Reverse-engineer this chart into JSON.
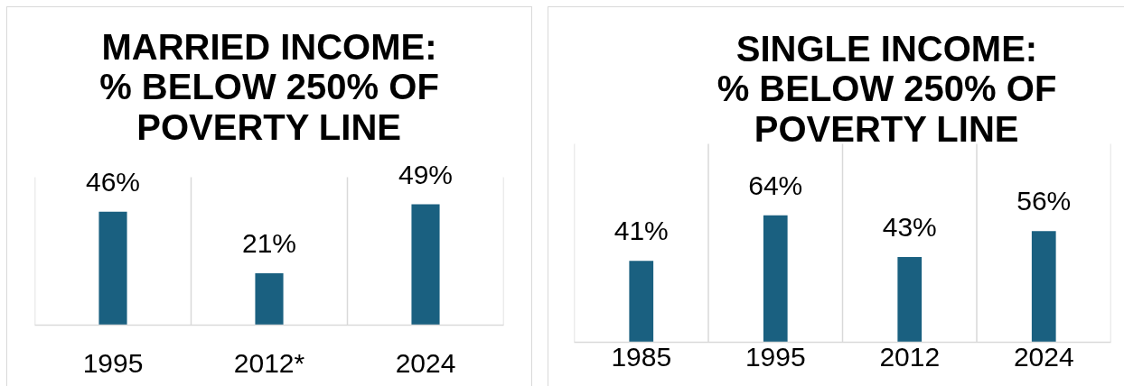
{
  "chart_data": [
    {
      "type": "bar",
      "title": "MARRIED INCOME:\n% BELOW 250% OF\nPOVERTY LINE",
      "categories": [
        "1995",
        "2012*",
        "2024"
      ],
      "values": [
        46,
        21,
        49
      ],
      "value_labels": [
        "46%",
        "21%",
        "49%"
      ],
      "color": "#1a6080",
      "grid": "x"
    },
    {
      "type": "bar",
      "title": "SINGLE INCOME:\n% BELOW 250% OF\nPOVERTY LINE",
      "categories": [
        "1985",
        "1995",
        "2012",
        "2024"
      ],
      "values": [
        41,
        64,
        43,
        56
      ],
      "value_labels": [
        "41%",
        "64%",
        "43%",
        "56%"
      ],
      "color": "#1a6080",
      "grid": "x"
    }
  ]
}
